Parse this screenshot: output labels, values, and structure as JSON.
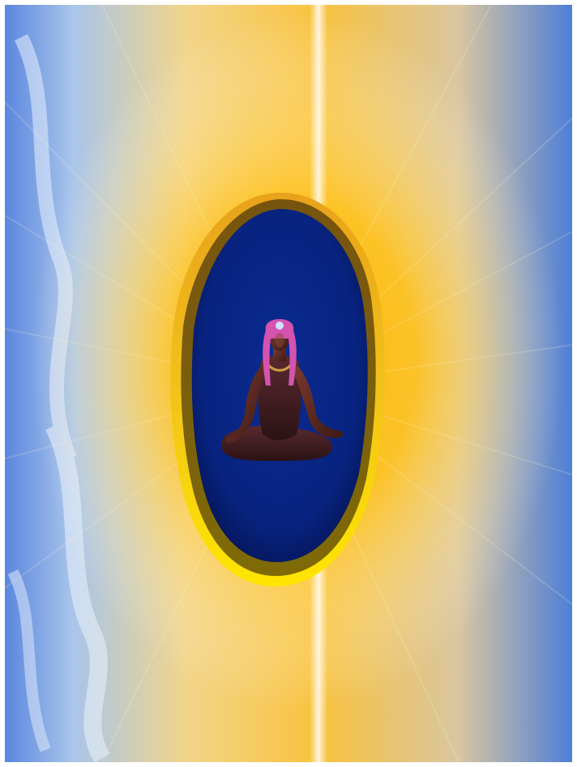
{
  "image": {
    "subject": "meditating-figure",
    "colors": {
      "sky_blue": "#4a78d8",
      "light_blue": "#9fc0ea",
      "golden_glow": "#ffc107",
      "bright_yellow": "#ffe34a",
      "portal_blue": "#0a2a8f",
      "portal_edge": "#06185f",
      "skin": "#5a2a24",
      "garment": "#3a1a1a",
      "headdress_pink": "#e056b8"
    }
  }
}
